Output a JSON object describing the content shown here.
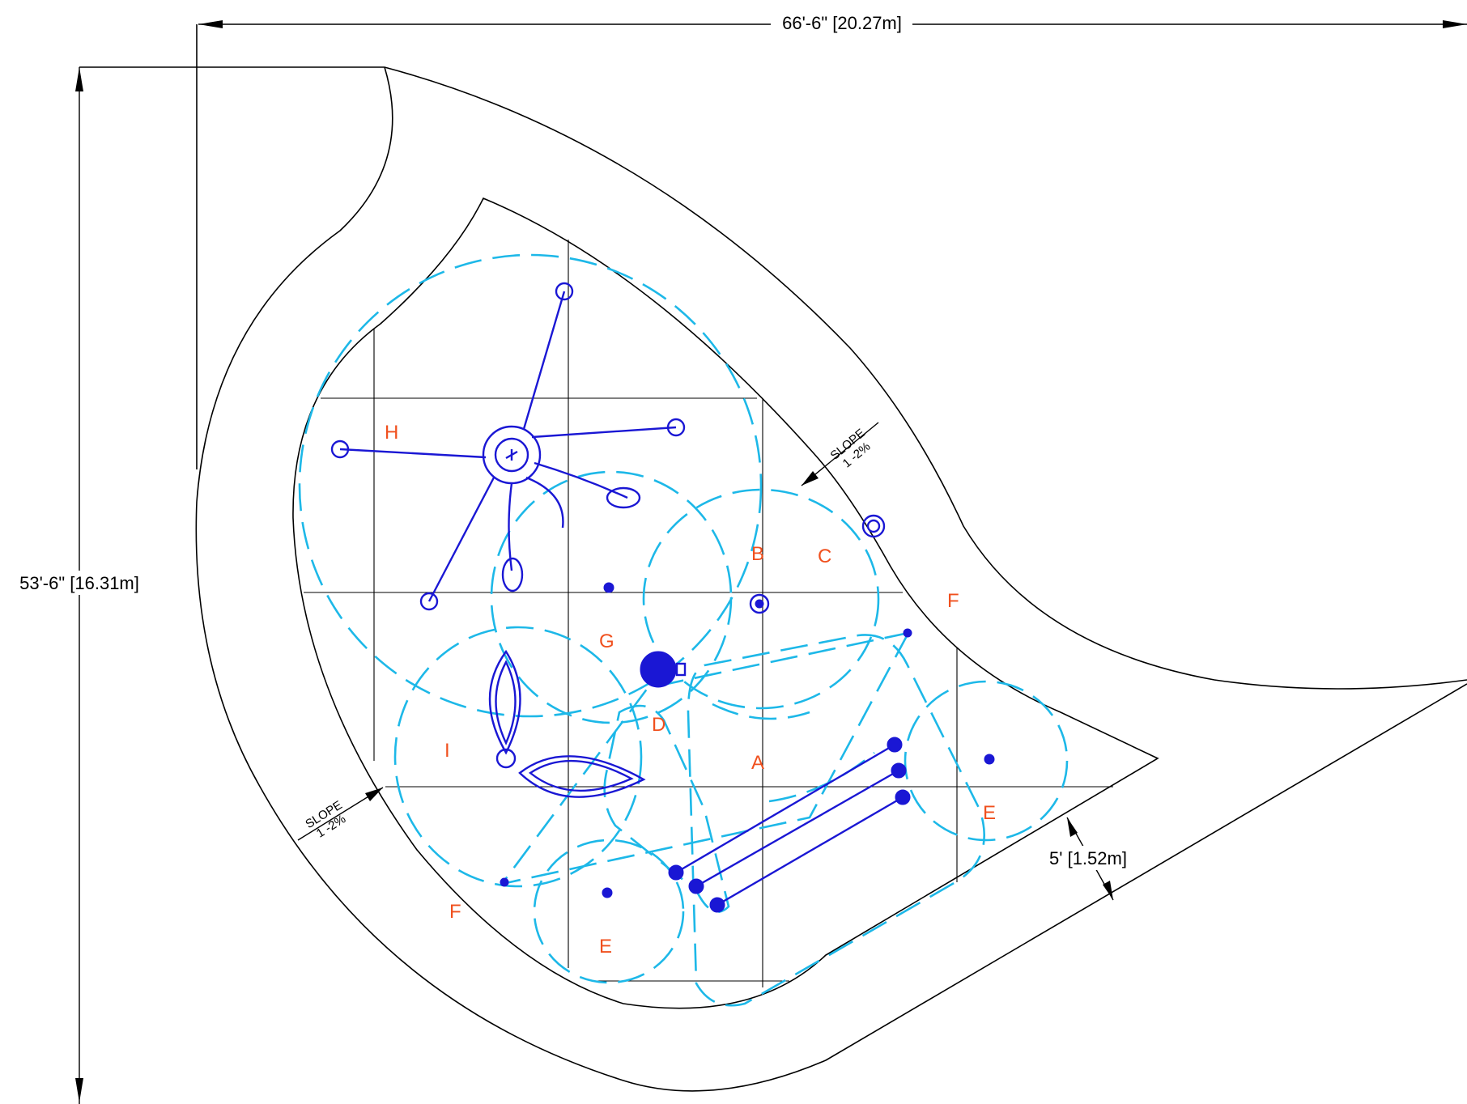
{
  "dimensions": {
    "width": "66'-6\" [20.27m]",
    "height": "53'-6\" [16.31m]",
    "border": "5' [1.52m]"
  },
  "slope_notes": [
    {
      "title": "SLOPE",
      "value": "1 -2%"
    },
    {
      "title": "SLOPE",
      "value": "1 -2%"
    }
  ],
  "zone_labels": [
    "H",
    "B",
    "C",
    "F",
    "G",
    "D",
    "I",
    "A",
    "E",
    "F",
    "E"
  ],
  "colors": {
    "outline": "#000000",
    "zones": "#1db8e8",
    "equipment": "#1a17d4",
    "labels": "#f0501e"
  }
}
